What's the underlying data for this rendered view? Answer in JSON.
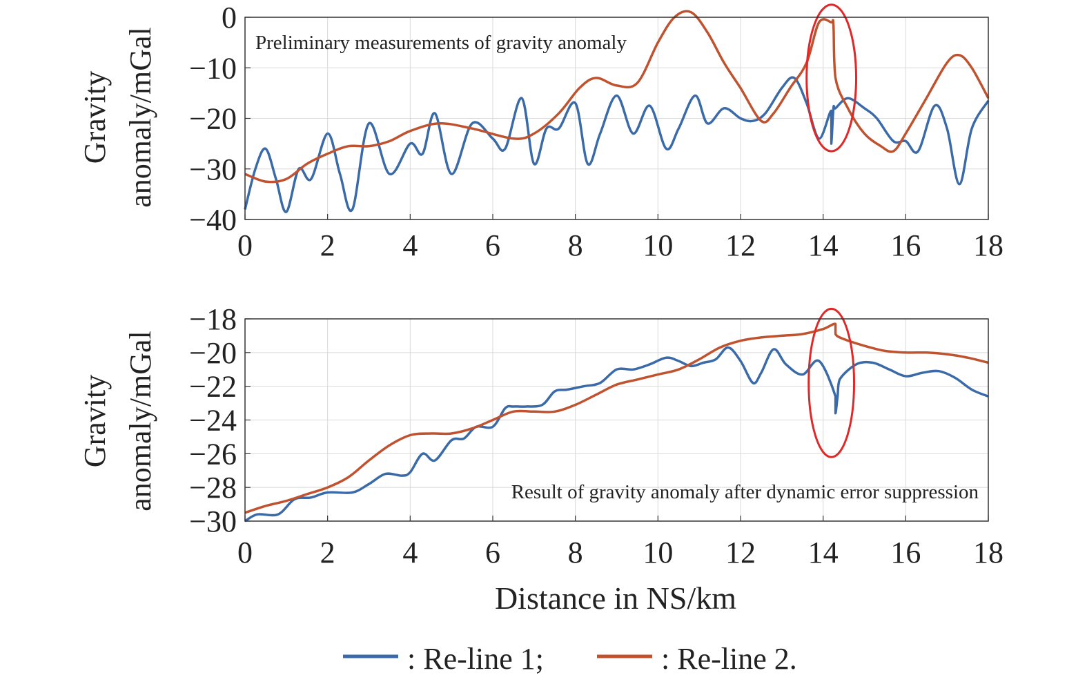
{
  "colors": {
    "re_line_1": "#3a6aa8",
    "re_line_2": "#c0532f",
    "highlight": "#e02828",
    "grid": "#d9d9d9"
  },
  "legend": {
    "items": [
      {
        "label": ": Re-line 1;",
        "color": "#3a6aa8"
      },
      {
        "label": ": Re-line 2.",
        "color": "#c0532f"
      }
    ]
  },
  "chart_data": [
    {
      "type": "line",
      "annotation": "Preliminary measurements of gravity anomaly",
      "ylabel_line1": "Gravity",
      "ylabel_line2": "anomaly/mGal",
      "xlim": [
        0,
        18
      ],
      "ylim": [
        -40,
        0
      ],
      "xticks": [
        "0",
        "2",
        "4",
        "6",
        "8",
        "10",
        "12",
        "14",
        "16",
        "18"
      ],
      "yticks": [
        "0",
        "−10",
        "−20",
        "−30",
        "−40"
      ],
      "grid": true,
      "highlight_ellipse": {
        "x_center": 14.2,
        "y_center": -12,
        "x_radius": 0.6,
        "y_radius": 14.5
      },
      "series": [
        {
          "name": "Re-line 1",
          "x": [
            0,
            0.25,
            0.5,
            0.75,
            1.0,
            1.3,
            1.6,
            2.0,
            2.3,
            2.6,
            3.0,
            3.5,
            4.0,
            4.3,
            4.6,
            5.0,
            5.5,
            6.0,
            6.3,
            6.7,
            7.0,
            7.3,
            7.6,
            8.0,
            8.3,
            8.6,
            9.0,
            9.4,
            9.8,
            10.2,
            10.5,
            10.9,
            11.2,
            11.6,
            12.0,
            12.3,
            12.6,
            13.0,
            13.3,
            13.6,
            13.9,
            14.2,
            14.2,
            14.25,
            14.3,
            14.6,
            15.0,
            15.3,
            15.7,
            16.0,
            16.3,
            16.7,
            17.0,
            17.3,
            17.6,
            18.0
          ],
          "y": [
            -38,
            -30,
            -26,
            -32,
            -38.5,
            -30,
            -32,
            -23,
            -31,
            -38,
            -21,
            -31,
            -25,
            -27,
            -19,
            -31,
            -21,
            -24,
            -26,
            -16,
            -29,
            -22,
            -22,
            -17,
            -29,
            -23,
            -15.5,
            -23,
            -17.5,
            -26,
            -22,
            -15.5,
            -21,
            -18,
            -20,
            -20.5,
            -19,
            -14,
            -12,
            -17,
            -24,
            -18.5,
            -25,
            -18,
            -18,
            -16,
            -18,
            -20,
            -24.5,
            -24.5,
            -26.5,
            -17.5,
            -22,
            -33,
            -22,
            -16.5
          ]
        },
        {
          "name": "Re-line 2",
          "x": [
            0,
            0.5,
            1.0,
            1.5,
            2.0,
            2.5,
            3.0,
            3.5,
            4.0,
            4.7,
            5.5,
            6.5,
            7.0,
            7.6,
            8.1,
            8.5,
            9.0,
            9.5,
            10.0,
            10.4,
            10.8,
            11.2,
            11.6,
            12.0,
            12.5,
            12.8,
            13.2,
            13.6,
            13.9,
            14.2,
            14.25,
            14.3,
            14.6,
            15.0,
            15.4,
            15.7,
            16.0,
            16.5,
            17.0,
            17.3,
            17.6,
            18.0
          ],
          "y": [
            -31,
            -32.5,
            -32,
            -29,
            -27,
            -25.5,
            -25.5,
            -24.5,
            -22.5,
            -21,
            -22,
            -24,
            -23,
            -19,
            -14,
            -12,
            -13.5,
            -13,
            -5,
            0,
            1,
            -3,
            -9,
            -14,
            -20.5,
            -19,
            -14,
            -9,
            -1,
            -1,
            -1.5,
            -12,
            -18,
            -23,
            -25.5,
            -26.5,
            -23,
            -16,
            -9,
            -7.5,
            -10,
            -16
          ]
        }
      ]
    },
    {
      "type": "line",
      "annotation": "Result of gravity anomaly after dynamic error suppression",
      "ylabel_line1": "Gravity",
      "ylabel_line2": "anomaly/mGal",
      "xlabel": "Distance in NS/km",
      "xlim": [
        0,
        18
      ],
      "ylim": [
        -30,
        -18
      ],
      "xticks": [
        "0",
        "2",
        "4",
        "6",
        "8",
        "10",
        "12",
        "14",
        "16",
        "18"
      ],
      "yticks": [
        "−18",
        "−20",
        "−22",
        "−24",
        "−26",
        "−28",
        "−30"
      ],
      "grid": true,
      "highlight_ellipse": {
        "x_center": 14.2,
        "y_center": -21.8,
        "x_radius": 0.55,
        "y_radius": 4.4
      },
      "series": [
        {
          "name": "Re-line 1",
          "x": [
            0,
            0.3,
            0.8,
            1.2,
            1.6,
            2.0,
            2.6,
            3.0,
            3.4,
            3.8,
            4.0,
            4.3,
            4.6,
            5.0,
            5.3,
            5.6,
            6.0,
            6.3,
            6.5,
            6.8,
            7.2,
            7.5,
            7.8,
            8.2,
            8.6,
            9.0,
            9.4,
            9.8,
            10.2,
            10.5,
            10.8,
            11.1,
            11.4,
            11.7,
            12.0,
            12.3,
            12.5,
            12.8,
            13.1,
            13.5,
            13.9,
            14.3,
            14.3,
            14.35,
            14.4,
            14.8,
            15.2,
            15.6,
            16.0,
            16.4,
            16.8,
            17.2,
            17.6,
            18.0
          ],
          "y": [
            -30,
            -29.6,
            -29.6,
            -28.7,
            -28.6,
            -28.3,
            -28.3,
            -27.8,
            -27.2,
            -27.3,
            -27.1,
            -26.0,
            -26.4,
            -25.2,
            -25.1,
            -24.4,
            -24.4,
            -23.3,
            -23.2,
            -23.2,
            -23.1,
            -22.3,
            -22.2,
            -22.0,
            -21.8,
            -21.0,
            -21.0,
            -20.7,
            -20.3,
            -20.5,
            -20.8,
            -20.6,
            -20.4,
            -19.7,
            -20.5,
            -21.8,
            -21.2,
            -19.8,
            -20.7,
            -21.3,
            -20.5,
            -22.6,
            -23.6,
            -22.6,
            -21.6,
            -20.7,
            -20.6,
            -21.0,
            -21.4,
            -21.2,
            -21.1,
            -21.5,
            -22.2,
            -22.6
          ]
        },
        {
          "name": "Re-line 2",
          "x": [
            0,
            0.5,
            1.0,
            1.5,
            2.0,
            2.5,
            3.0,
            3.5,
            4.0,
            4.5,
            5.0,
            5.5,
            6.0,
            6.5,
            7.0,
            7.5,
            8.0,
            8.5,
            9.0,
            9.5,
            10.0,
            10.5,
            11.0,
            11.5,
            12.0,
            12.5,
            13.0,
            13.5,
            14.0,
            14.3,
            14.3,
            14.5,
            15.0,
            15.5,
            16.0,
            16.5,
            17.0,
            17.5,
            18.0
          ],
          "y": [
            -29.5,
            -29.1,
            -28.8,
            -28.4,
            -28.0,
            -27.4,
            -26.4,
            -25.5,
            -24.9,
            -24.8,
            -24.8,
            -24.5,
            -24.0,
            -23.5,
            -23.5,
            -23.5,
            -23.1,
            -22.5,
            -21.9,
            -21.6,
            -21.3,
            -21.0,
            -20.4,
            -19.7,
            -19.3,
            -19.1,
            -19.0,
            -18.9,
            -18.6,
            -18.3,
            -18.9,
            -19.2,
            -19.6,
            -19.9,
            -20.0,
            -20.0,
            -20.1,
            -20.3,
            -20.6
          ]
        }
      ]
    }
  ]
}
